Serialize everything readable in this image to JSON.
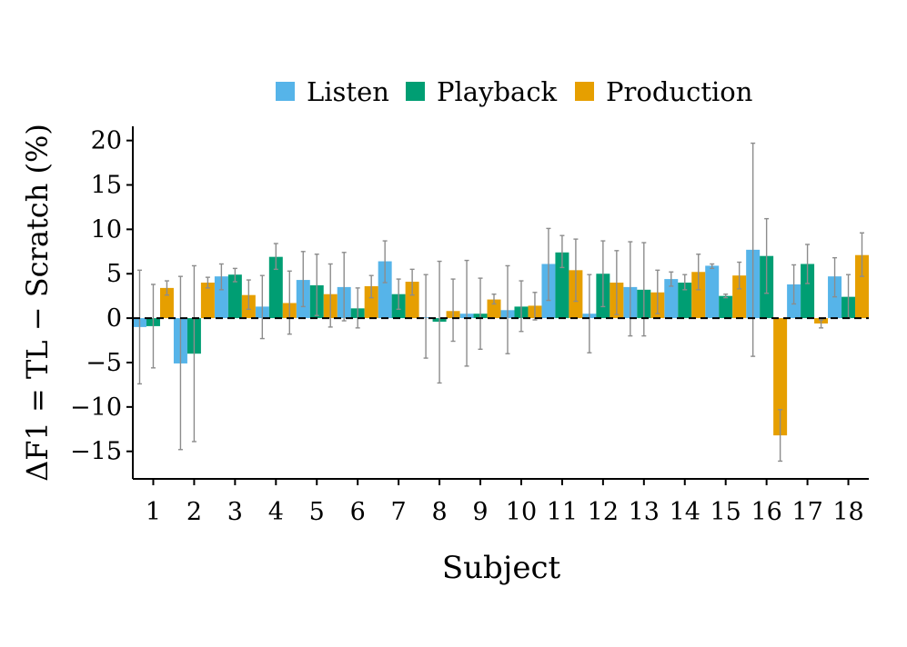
{
  "chart_data": {
    "type": "bar",
    "title": "",
    "xlabel": "Subject",
    "ylabel": "ΔF1 = TL − Scratch (%)",
    "ylim": [
      -18.1,
      21.6
    ],
    "yticks": [
      -15,
      -10,
      -5,
      0,
      5,
      10,
      15,
      20
    ],
    "ytick_labels": [
      "−15",
      "−10",
      "−5",
      "0",
      "5",
      "10",
      "15",
      "20"
    ],
    "categories": [
      "1",
      "2",
      "3",
      "4",
      "5",
      "6",
      "7",
      "8",
      "9",
      "10",
      "11",
      "12",
      "13",
      "14",
      "15",
      "16",
      "17",
      "18"
    ],
    "legend_position": "top-center",
    "reference_line": 0,
    "series": [
      {
        "name": "Listen",
        "color": "#56B4E9",
        "values": [
          -1.0,
          -5.1,
          4.7,
          1.3,
          4.3,
          3.5,
          6.4,
          0.1,
          0.5,
          0.9,
          6.1,
          0.5,
          3.5,
          4.4,
          5.9,
          7.7,
          3.8,
          4.7
        ],
        "err_low": [
          -7.4,
          -14.8,
          3.2,
          -2.3,
          1.3,
          -0.3,
          4.0,
          -4.5,
          -5.4,
          -4.0,
          2.0,
          -3.9,
          -2.0,
          3.6,
          5.6,
          -4.3,
          1.6,
          2.4
        ],
        "err_high": [
          5.4,
          4.7,
          6.1,
          4.8,
          7.5,
          7.4,
          8.7,
          4.9,
          6.5,
          5.9,
          10.1,
          4.9,
          8.6,
          5.2,
          6.1,
          19.7,
          6.0,
          6.8
        ]
      },
      {
        "name": "Playback",
        "color": "#009E73",
        "values": [
          -0.9,
          -4.0,
          4.9,
          6.9,
          3.7,
          1.1,
          2.7,
          -0.4,
          0.5,
          1.3,
          7.4,
          5.0,
          3.2,
          4.0,
          2.5,
          7.0,
          6.1,
          2.4
        ],
        "err_low": [
          -5.6,
          -13.9,
          4.1,
          5.5,
          0.3,
          -1.1,
          1.0,
          -7.3,
          -3.5,
          -1.5,
          5.7,
          1.3,
          -2.0,
          3.2,
          2.3,
          2.8,
          3.9,
          0.0
        ],
        "err_high": [
          3.8,
          5.9,
          5.6,
          8.4,
          7.2,
          3.4,
          4.4,
          6.4,
          4.5,
          4.2,
          9.3,
          8.7,
          8.5,
          4.9,
          2.7,
          11.2,
          8.3,
          4.9
        ]
      },
      {
        "name": "Production",
        "color": "#E69F00",
        "values": [
          3.4,
          4.0,
          2.6,
          1.7,
          2.7,
          3.6,
          4.1,
          0.8,
          2.1,
          1.4,
          5.4,
          4.0,
          2.9,
          5.2,
          4.8,
          -13.2,
          -0.6,
          7.1
        ],
        "err_low": [
          2.6,
          3.4,
          1.0,
          -1.8,
          -1.0,
          2.3,
          2.6,
          -2.6,
          1.6,
          -0.2,
          1.9,
          0.4,
          0.5,
          3.2,
          3.3,
          -16.1,
          -1.1,
          4.7
        ],
        "err_high": [
          4.2,
          4.6,
          4.3,
          5.3,
          6.1,
          4.8,
          5.5,
          4.4,
          2.7,
          2.9,
          8.9,
          7.6,
          5.4,
          7.2,
          6.3,
          -10.3,
          -0.2,
          9.6
        ]
      }
    ]
  }
}
